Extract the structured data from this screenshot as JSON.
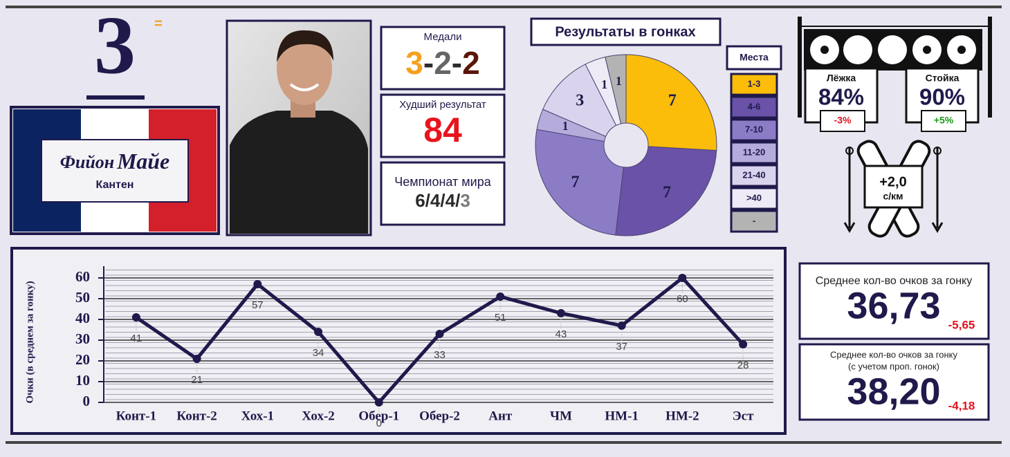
{
  "rank": {
    "position": "3",
    "change": "="
  },
  "athlete": {
    "surname_part1": "Фийон",
    "surname_part2": "Майе",
    "first_name": "Кантен"
  },
  "medals": {
    "label": "Медали",
    "values": [
      3,
      2,
      2
    ],
    "colors": [
      "#f5a01e",
      "#666666",
      "#5a1608"
    ],
    "separator": "-"
  },
  "worst_result": {
    "label": "Худший результат",
    "value": 84
  },
  "world_championship": {
    "label": "Чемпионат мира",
    "values": [
      6,
      4,
      4,
      3
    ],
    "colors": [
      "#2b2b2b",
      "#2b2b2b",
      "#2b2b2b",
      "#7a7a7a"
    ],
    "separator": "/"
  },
  "shooting": [
    {
      "label": "Лёжка",
      "value": "84%",
      "change": "-3%",
      "change_color": "#e0141e"
    },
    {
      "label": "Стойка",
      "value": "90%",
      "change": "+5%",
      "change_color": "#1a9a1a"
    }
  ],
  "ski_speed": {
    "value": "+2,0",
    "unit": "с/км"
  },
  "averages": [
    {
      "label_lines": [
        "Среднее кол-во очков за гонку"
      ],
      "value": "36,73",
      "change": "-5,65"
    },
    {
      "label_lines": [
        "Среднее кол-во очков за гонку",
        "(с учетом проп. гонок)"
      ],
      "value": "38,20",
      "change": "-4,18"
    }
  ],
  "chart_data": [
    {
      "type": "pie",
      "title": "Результаты в гонках",
      "legend_title": "Места",
      "categories": [
        "1-3",
        "4-6",
        "7-10",
        "11-20",
        "21-40",
        ">40",
        "-"
      ],
      "values": [
        7,
        7,
        7,
        1,
        3,
        1,
        1
      ],
      "colors": [
        "#fbbd09",
        "#6a52a8",
        "#8c7cc6",
        "#b6acdc",
        "#d9d3ed",
        "#eeebf7",
        "#b3b3b3"
      ]
    },
    {
      "type": "line",
      "y_label": "Очки (в среднем за гонку)",
      "categories": [
        "Конт-1",
        "Конт-2",
        "Хох-1",
        "Хох-2",
        "Обер-1",
        "Обер-2",
        "Ант",
        "ЧМ",
        "НМ-1",
        "НМ-2",
        "Эст"
      ],
      "values": [
        41,
        21,
        57,
        34,
        0,
        33,
        51,
        43,
        37,
        60,
        28
      ],
      "color": "#1f1a4b",
      "ylim": [
        0,
        64
      ],
      "yticks": [
        0,
        10,
        20,
        30,
        40,
        50,
        60
      ],
      "grid": true
    }
  ]
}
